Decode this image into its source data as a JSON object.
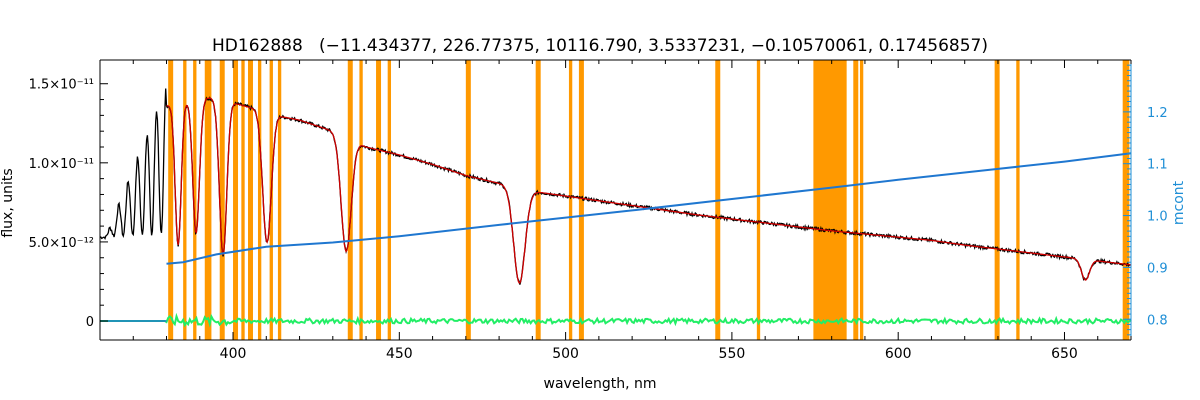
{
  "chart_data": {
    "type": "line",
    "title": "HD162888   (−11.434377, 226.77375, 10116.790, 3.5337231, −0.10570061, 0.17456857)",
    "xlabel": "wavelength, nm",
    "ylabel": "flux, units",
    "y2label": "mcont",
    "xlim": [
      360,
      670
    ],
    "ylim": [
      -1.2e-12,
      1.65e-11
    ],
    "y2lim": [
      0.76,
      1.3
    ],
    "xticks": [
      400,
      450,
      500,
      550,
      600,
      650
    ],
    "xtick_labels": [
      "400",
      "450",
      "500",
      "550",
      "600",
      "650"
    ],
    "yticks": [
      0,
      5e-12,
      1e-11,
      1.5e-11
    ],
    "ytick_labels": [
      "0",
      "5.0×10⁻¹²",
      "1.0×10⁻¹¹",
      "1.5×10⁻¹¹"
    ],
    "y2ticks": [
      0.8,
      0.9,
      1.0,
      1.1,
      1.2
    ],
    "y2tick_labels": [
      "0.8",
      "0.9",
      "1.0",
      "1.1",
      "1.2"
    ],
    "grid": false,
    "colors": {
      "observed": "#000000",
      "model": "#cc0000",
      "continuum": "#1f77d0",
      "residual": "#22ee66",
      "masks": "#ff9900",
      "y2axis": "#1f8fd6",
      "frame": "#000000"
    },
    "continuum_knots": {
      "axis": "y2",
      "x": [
        380,
        385,
        395,
        410,
        430,
        450,
        480,
        500,
        520,
        550,
        580,
        600,
        630,
        650,
        670
      ],
      "y": [
        0.907,
        0.91,
        0.925,
        0.94,
        0.948,
        0.96,
        0.982,
        0.996,
        1.01,
        1.032,
        1.054,
        1.069,
        1.09,
        1.104,
        1.12
      ]
    },
    "spectrum_continuum": {
      "x": [
        360,
        375,
        380,
        385,
        390,
        395,
        400,
        405,
        410,
        415,
        420,
        430,
        440,
        450,
        460,
        470,
        480,
        490,
        500,
        510,
        520,
        530,
        540,
        550,
        560,
        570,
        580,
        590,
        600,
        610,
        620,
        630,
        640,
        650,
        660,
        670
      ],
      "y": [
        5.3e-12,
        5.5e-12,
        1.36e-11,
        1.39e-11,
        1.41e-11,
        1.41e-11,
        1.38e-11,
        1.35e-11,
        1.33e-11,
        1.29e-11,
        1.27e-11,
        1.2e-11,
        1.1e-11,
        1.05e-11,
        9.9e-12,
        9.2e-12,
        8.7e-12,
        8.2e-12,
        7.9e-12,
        7.6e-12,
        7.3e-12,
        7e-12,
        6.7e-12,
        6.45e-12,
        6.2e-12,
        5.95e-12,
        5.7e-12,
        5.5e-12,
        5.3e-12,
        5.1e-12,
        4.8e-12,
        4.55e-12,
        4.3e-12,
        4.05e-12,
        3.8e-12,
        3.55e-12
      ]
    },
    "absorption_lines": [
      {
        "x": 383.5,
        "depth": 9e-12,
        "width": 0.9
      },
      {
        "x": 388.9,
        "depth": 8.5e-12,
        "width": 1.0
      },
      {
        "x": 397.0,
        "depth": 9.8e-12,
        "width": 1.1
      },
      {
        "x": 410.2,
        "depth": 8.3e-12,
        "width": 1.3
      },
      {
        "x": 434.0,
        "depth": 7.2e-12,
        "width": 1.5
      },
      {
        "x": 486.1,
        "depth": 6e-12,
        "width": 1.7
      },
      {
        "x": 656.3,
        "depth": 1.3e-12,
        "width": 1.2
      }
    ],
    "masks": [
      [
        380.5,
        382.0
      ],
      [
        385.0,
        386.0
      ],
      [
        388.0,
        389.0
      ],
      [
        391.5,
        393.5
      ],
      [
        396.0,
        397.5
      ],
      [
        400.0,
        401.5
      ],
      [
        402.5,
        403.5
      ],
      [
        404.5,
        406.0
      ],
      [
        407.5,
        408.5
      ],
      [
        411.0,
        412.0
      ],
      [
        413.5,
        414.5
      ],
      [
        434.5,
        436.0
      ],
      [
        438.0,
        439.0
      ],
      [
        443.0,
        444.5
      ],
      [
        446.5,
        447.5
      ],
      [
        470.0,
        471.5
      ],
      [
        491.0,
        492.5
      ],
      [
        501.0,
        502.0
      ],
      [
        504.0,
        505.5
      ],
      [
        545.0,
        546.5
      ],
      [
        557.5,
        558.5
      ],
      [
        574.5,
        584.5
      ],
      [
        586.5,
        588.0
      ],
      [
        588.5,
        589.5
      ],
      [
        629.0,
        630.5
      ],
      [
        635.5,
        636.5
      ],
      [
        667.5,
        669.5
      ]
    ],
    "residual_level": 0
  }
}
